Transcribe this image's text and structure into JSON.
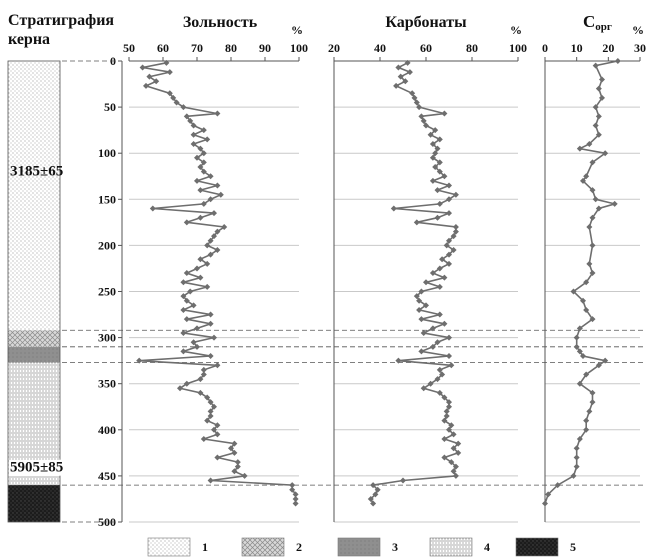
{
  "strat_title_line1": "Стратиграфия",
  "strat_title_line2": "керна",
  "depth_ticks": [
    0,
    50,
    100,
    150,
    200,
    250,
    300,
    350,
    400,
    450,
    500
  ],
  "ages": [
    {
      "label": "3185±65",
      "depth": 119
    },
    {
      "label": "5905±85",
      "depth": 440
    }
  ],
  "horizons": [
    292,
    310,
    327,
    460
  ],
  "strat_units": [
    {
      "type": 1,
      "top": 0,
      "bottom": 292
    },
    {
      "type": 2,
      "top": 292,
      "bottom": 310
    },
    {
      "type": 3,
      "top": 310,
      "bottom": 327
    },
    {
      "type": 4,
      "top": 327,
      "bottom": 460
    },
    {
      "type": 5,
      "top": 460,
      "bottom": 500
    }
  ],
  "legend": [
    {
      "type": 1,
      "label": "1"
    },
    {
      "type": 2,
      "label": "2"
    },
    {
      "type": 3,
      "label": "3"
    },
    {
      "type": 4,
      "label": "4"
    },
    {
      "type": 5,
      "label": "5"
    }
  ],
  "colors": {
    "series": "#6e6e6e",
    "grid": "#c9c9c9"
  },
  "chart_data": [
    {
      "type": "line",
      "title": "Зольность",
      "unit": "%",
      "xlim": [
        50,
        100
      ],
      "xticks": [
        50,
        60,
        70,
        80,
        90,
        100
      ],
      "ylim": [
        0,
        500
      ],
      "y": [
        2,
        7,
        12,
        17,
        22,
        27,
        35,
        40,
        45,
        50,
        57,
        60,
        65,
        70,
        75,
        80,
        85,
        90,
        95,
        100,
        105,
        110,
        115,
        120,
        125,
        130,
        135,
        140,
        145,
        150,
        155,
        160,
        165,
        170,
        175,
        180,
        185,
        190,
        195,
        200,
        205,
        210,
        215,
        220,
        225,
        230,
        235,
        240,
        245,
        250,
        255,
        260,
        265,
        270,
        275,
        280,
        285,
        290,
        295,
        300,
        305,
        310,
        315,
        320,
        325,
        330,
        335,
        340,
        345,
        350,
        355,
        360,
        365,
        370,
        375,
        380,
        385,
        390,
        395,
        400,
        405,
        410,
        415,
        420,
        425,
        430,
        435,
        440,
        445,
        450,
        455,
        460,
        465,
        470,
        475,
        480
      ],
      "values": [
        61,
        54,
        62,
        56,
        58,
        55,
        62,
        63,
        64,
        66,
        76,
        67,
        68,
        69,
        72,
        69,
        73,
        69,
        71,
        72,
        70,
        72,
        71,
        72,
        74,
        70,
        76,
        71,
        77,
        74,
        72,
        57,
        75,
        71,
        67,
        78,
        76,
        75,
        74,
        73,
        76,
        74,
        71,
        73,
        70,
        67,
        71,
        66,
        73,
        68,
        66,
        67,
        69,
        66,
        74,
        67,
        74,
        70,
        66,
        75,
        69,
        70,
        66,
        74,
        53,
        76,
        72,
        72,
        71,
        67,
        65,
        71,
        73,
        74,
        75,
        74,
        74,
        73,
        76,
        75,
        76,
        72,
        81,
        80,
        81,
        76,
        82,
        82,
        81,
        84,
        74,
        98,
        98,
        99,
        99,
        99
      ]
    },
    {
      "type": "line",
      "title": "Карбонаты",
      "unit": "%",
      "xlim": [
        20,
        100
      ],
      "xticks": [
        20,
        40,
        60,
        80,
        100
      ],
      "ylim": [
        0,
        500
      ],
      "y": [
        2,
        7,
        12,
        17,
        22,
        27,
        35,
        40,
        45,
        50,
        57,
        60,
        65,
        70,
        75,
        80,
        85,
        90,
        95,
        100,
        105,
        110,
        115,
        120,
        125,
        130,
        135,
        140,
        145,
        150,
        155,
        160,
        165,
        170,
        175,
        180,
        185,
        190,
        195,
        200,
        205,
        210,
        215,
        220,
        225,
        230,
        235,
        240,
        245,
        250,
        255,
        260,
        265,
        270,
        275,
        280,
        285,
        290,
        295,
        300,
        305,
        310,
        315,
        320,
        325,
        330,
        335,
        340,
        345,
        350,
        355,
        360,
        365,
        370,
        375,
        380,
        385,
        390,
        395,
        400,
        405,
        410,
        415,
        420,
        425,
        430,
        435,
        440,
        445,
        450,
        455,
        460,
        465,
        470,
        475,
        480
      ],
      "values": [
        52,
        48,
        53,
        49,
        51,
        47,
        54,
        55,
        56,
        57,
        68,
        58,
        59,
        60,
        64,
        62,
        66,
        63,
        65,
        64,
        63,
        66,
        64,
        66,
        68,
        63,
        70,
        65,
        73,
        70,
        66,
        46,
        70,
        65,
        56,
        73,
        73,
        72,
        70,
        69,
        72,
        70,
        67,
        70,
        66,
        63,
        68,
        60,
        66,
        58,
        56,
        57,
        60,
        57,
        66,
        58,
        68,
        63,
        59,
        70,
        65,
        63,
        58,
        70,
        48,
        71,
        66,
        67,
        65,
        62,
        59,
        66,
        68,
        70,
        70,
        69,
        69,
        68,
        71,
        70,
        72,
        68,
        74,
        72,
        74,
        68,
        71,
        73,
        72,
        73,
        50,
        37,
        39,
        38,
        36,
        37
      ]
    },
    {
      "type": "line",
      "title": "Сорг",
      "unit": "%",
      "xlim": [
        0,
        30
      ],
      "xticks": [
        0,
        10,
        20,
        30
      ],
      "ylim": [
        0,
        500
      ],
      "y": [
        0,
        5,
        20,
        30,
        40,
        50,
        60,
        70,
        80,
        90,
        95,
        100,
        110,
        125,
        130,
        140,
        150,
        155,
        160,
        170,
        180,
        200,
        220,
        230,
        240,
        250,
        260,
        270,
        280,
        290,
        300,
        310,
        315,
        320,
        325,
        330,
        340,
        350,
        360,
        370,
        380,
        390,
        400,
        410,
        420,
        430,
        440,
        450,
        460,
        470,
        480
      ],
      "values": [
        23,
        16,
        18,
        17,
        18,
        16,
        17,
        16,
        17,
        14,
        11,
        19,
        15,
        13,
        12,
        15,
        16,
        22,
        17,
        15,
        14,
        15,
        14,
        15,
        13,
        9,
        12,
        13,
        15,
        11,
        10,
        10,
        11,
        12,
        19,
        17,
        13,
        11,
        15,
        15,
        14,
        13,
        13,
        11,
        10,
        10,
        10,
        9,
        4,
        1,
        0
      ]
    }
  ]
}
